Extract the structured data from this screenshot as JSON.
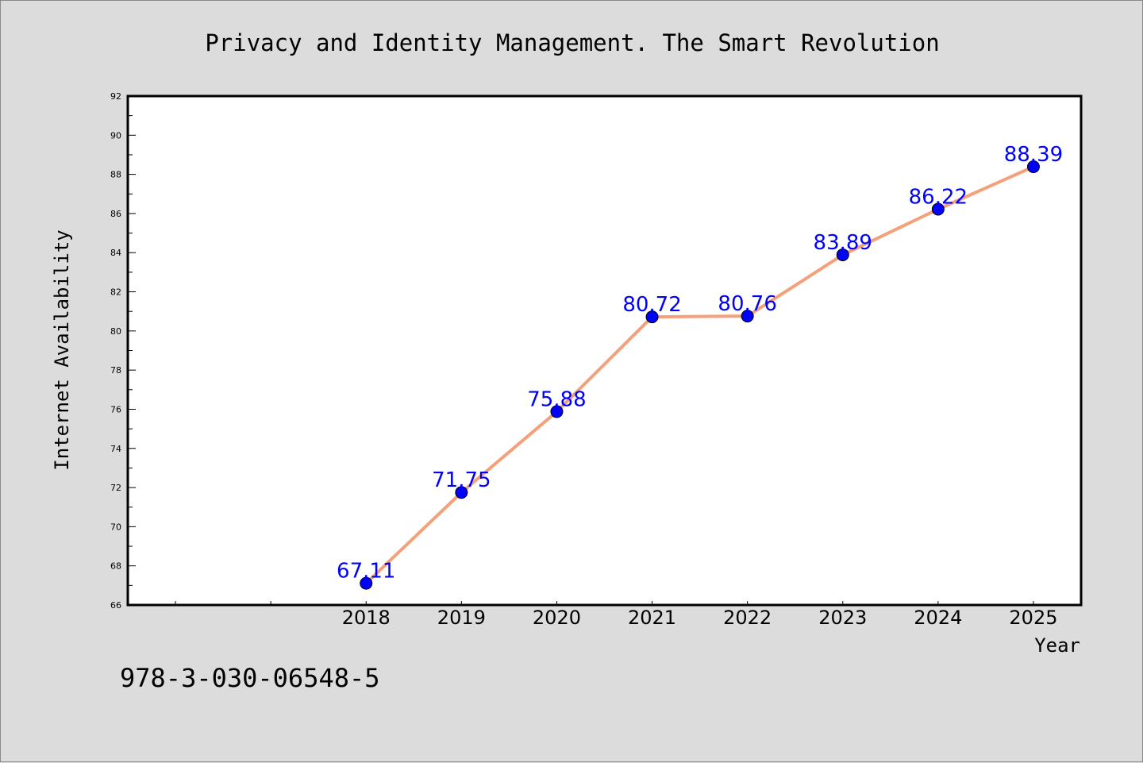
{
  "chart_data": {
    "type": "line",
    "title": "Privacy and Identity Management. The Smart Revolution",
    "xlabel": "Year",
    "ylabel": "Internet Availability",
    "categories": [
      "2018",
      "2019",
      "2020",
      "2021",
      "2022",
      "2023",
      "2024",
      "2025"
    ],
    "series": [
      {
        "values": [
          67.11,
          71.75,
          75.88,
          80.72,
          80.76,
          83.89,
          86.22,
          88.39
        ],
        "data_labels": [
          "67.11",
          "71.75",
          "75.88",
          "80.72",
          "80.76",
          "83.89",
          "86.22",
          "88.39"
        ],
        "line_color": "#f4a07a",
        "marker_color": "#0000ff"
      }
    ],
    "ylim": [
      66,
      92
    ],
    "yticks": [
      "66",
      "68",
      "70",
      "72",
      "74",
      "76",
      "78",
      "80",
      "82",
      "84",
      "86",
      "88",
      "90",
      "92"
    ],
    "xlim": [
      2015.5,
      2025.5
    ],
    "grid": false,
    "legend": "none"
  },
  "footer": {
    "isbn": "978-3-030-06548-5"
  },
  "colors": {
    "background": "#dcdcdc",
    "plot_area": "#ffffff",
    "label_color": "#0000ff"
  }
}
